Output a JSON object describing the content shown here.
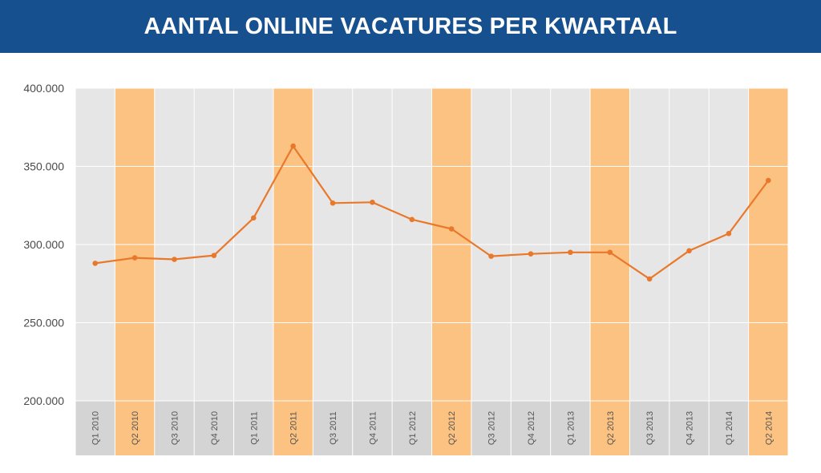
{
  "header": {
    "title": "AANTAL ONLINE VACATURES PER KWARTAAL",
    "background_color": "#16508f"
  },
  "chart_data": {
    "type": "line",
    "title": "AANTAL ONLINE VACATURES PER KWARTAAL",
    "xlabel": "",
    "ylabel": "",
    "ylim": [
      200000,
      400000
    ],
    "y_ticks": [
      200000,
      250000,
      300000,
      350000,
      400000
    ],
    "y_tick_labels": [
      "200.000",
      "250.000",
      "300.000",
      "350.000",
      "400.000"
    ],
    "grid": true,
    "legend": "none",
    "categories": [
      "Q1 2010",
      "Q2 2010",
      "Q3 2010",
      "Q4 2010",
      "Q1 2011",
      "Q2 2011",
      "Q3 2011",
      "Q4 2011",
      "Q1 2012",
      "Q2 2012",
      "Q3 2012",
      "Q4 2012",
      "Q1 2013",
      "Q2 2013",
      "Q3 2013",
      "Q4 2013",
      "Q1 2014",
      "Q2 2014"
    ],
    "highlighted_categories": [
      "Q2 2010",
      "Q2 2011",
      "Q2 2012",
      "Q2 2013",
      "Q2 2014"
    ],
    "series": [
      {
        "values": [
          288000,
          291500,
          290500,
          293000,
          317000,
          363000,
          326500,
          327000,
          316000,
          310000,
          292500,
          294000,
          295000,
          295000,
          278000,
          296000,
          307000,
          341000
        ]
      }
    ],
    "colors": {
      "line": "#e8792c",
      "plot_background": "#e6e6e6",
      "highlight_band": "#fcc282",
      "label_band": "#d4d4d4",
      "gridline": "#ffffff"
    }
  }
}
